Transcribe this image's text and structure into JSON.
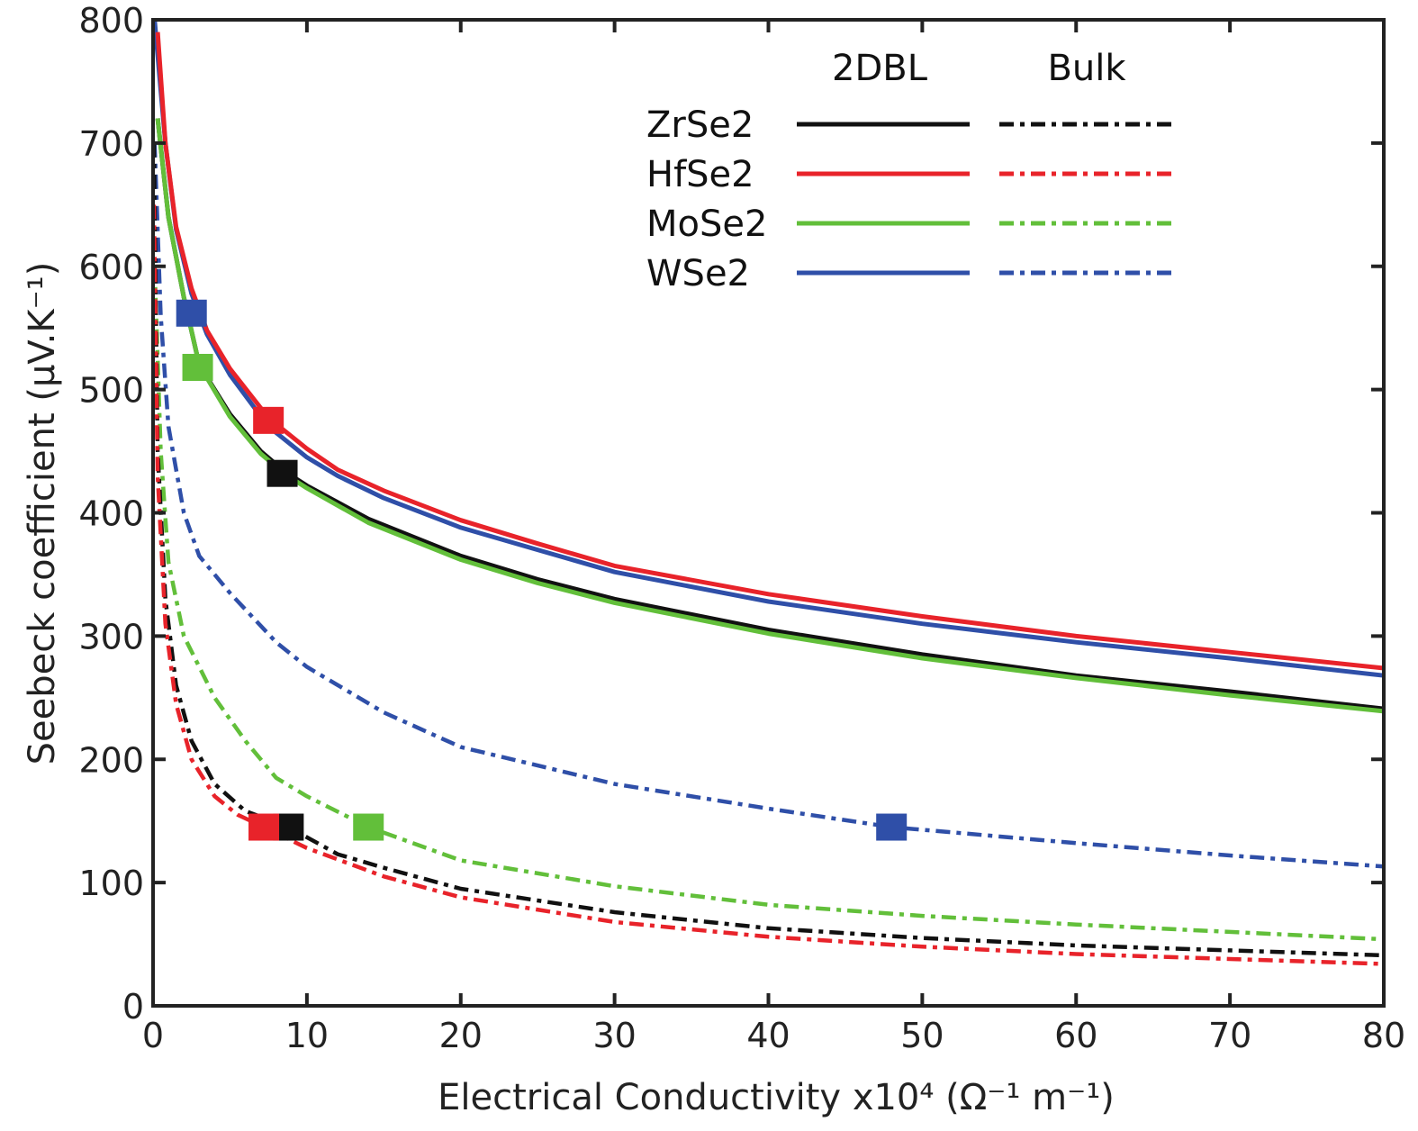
{
  "chart_data": {
    "type": "line",
    "xlabel": "Electrical Conductivity x10⁴  (Ω⁻¹ m⁻¹)",
    "ylabel": "Seebeck coefficient  (μV.K⁻¹)",
    "xlim": [
      0,
      80
    ],
    "ylim": [
      0,
      800
    ],
    "xticks": [
      0,
      10,
      20,
      30,
      40,
      50,
      60,
      70,
      80
    ],
    "yticks": [
      0,
      100,
      200,
      300,
      400,
      500,
      600,
      700,
      800
    ],
    "grid": false,
    "legend": {
      "placement": "top-right",
      "column_headers": [
        "2DBL",
        "Bulk"
      ],
      "rows": [
        "ZrSe2",
        "HfSe2",
        "MoSe2",
        "WSe2"
      ]
    },
    "colors": {
      "ZrSe2": "#111111",
      "HfSe2": "#e8232a",
      "MoSe2": "#62bf3a",
      "WSe2": "#2f4fa8"
    },
    "series": [
      {
        "name": "ZrSe2 2DBL",
        "material": "ZrSe2",
        "style": "solid",
        "marker": [
          8.4,
          432
        ],
        "points": [
          [
            0.3,
            720
          ],
          [
            1,
            640
          ],
          [
            2,
            575
          ],
          [
            3,
            520
          ],
          [
            5,
            480
          ],
          [
            7,
            450
          ],
          [
            8.5,
            434
          ],
          [
            10,
            422
          ],
          [
            14,
            395
          ],
          [
            20,
            365
          ],
          [
            25,
            346
          ],
          [
            30,
            330
          ],
          [
            40,
            305
          ],
          [
            50,
            285
          ],
          [
            60,
            268
          ],
          [
            70,
            255
          ],
          [
            80,
            241
          ]
        ]
      },
      {
        "name": "MoSe2 2DBL",
        "material": "MoSe2",
        "style": "solid",
        "marker": [
          2.9,
          518
        ],
        "points": [
          [
            0.3,
            720
          ],
          [
            1,
            640
          ],
          [
            2,
            575
          ],
          [
            3,
            520
          ],
          [
            5,
            478
          ],
          [
            7,
            448
          ],
          [
            8.5,
            432
          ],
          [
            10,
            420
          ],
          [
            14,
            392
          ],
          [
            20,
            362
          ],
          [
            25,
            343
          ],
          [
            30,
            327
          ],
          [
            40,
            302
          ],
          [
            50,
            282
          ],
          [
            60,
            266
          ],
          [
            70,
            252
          ],
          [
            80,
            239
          ]
        ]
      },
      {
        "name": "WSe2 2DBL",
        "material": "WSe2",
        "style": "solid",
        "marker": [
          2.5,
          562
        ],
        "points": [
          [
            0.1,
            800
          ],
          [
            0.8,
            700
          ],
          [
            1.5,
            630
          ],
          [
            2.5,
            578
          ],
          [
            3.5,
            545
          ],
          [
            5,
            512
          ],
          [
            7.5,
            470
          ],
          [
            10,
            445
          ],
          [
            12,
            430
          ],
          [
            15,
            412
          ],
          [
            20,
            388
          ],
          [
            25,
            370
          ],
          [
            30,
            352
          ],
          [
            40,
            328
          ],
          [
            50,
            310
          ],
          [
            60,
            295
          ],
          [
            70,
            282
          ],
          [
            80,
            268
          ]
        ]
      },
      {
        "name": "HfSe2 2DBL",
        "material": "HfSe2",
        "style": "solid",
        "marker": [
          7.5,
          475
        ],
        "points": [
          [
            0.3,
            790
          ],
          [
            0.8,
            700
          ],
          [
            1.5,
            632
          ],
          [
            2.5,
            582
          ],
          [
            3.5,
            548
          ],
          [
            5,
            517
          ],
          [
            7.5,
            477
          ],
          [
            10,
            452
          ],
          [
            12,
            435
          ],
          [
            15,
            418
          ],
          [
            20,
            394
          ],
          [
            25,
            375
          ],
          [
            30,
            357
          ],
          [
            40,
            334
          ],
          [
            50,
            316
          ],
          [
            60,
            300
          ],
          [
            70,
            287
          ],
          [
            80,
            274
          ]
        ]
      },
      {
        "name": "WSe2 Bulk",
        "material": "WSe2",
        "style": "dashdot",
        "marker": [
          48,
          145
        ],
        "points": [
          [
            0.1,
            700
          ],
          [
            0.5,
            560
          ],
          [
            1,
            470
          ],
          [
            2,
            400
          ],
          [
            3,
            365
          ],
          [
            5,
            335
          ],
          [
            8,
            295
          ],
          [
            10,
            275
          ],
          [
            15,
            238
          ],
          [
            20,
            210
          ],
          [
            30,
            180
          ],
          [
            40,
            160
          ],
          [
            48,
            145
          ],
          [
            60,
            132
          ],
          [
            70,
            122
          ],
          [
            80,
            113
          ]
        ]
      },
      {
        "name": "MoSe2 Bulk",
        "material": "MoSe2",
        "style": "dashdot",
        "marker": [
          14,
          145
        ],
        "points": [
          [
            0.1,
            600
          ],
          [
            0.5,
            450
          ],
          [
            1,
            360
          ],
          [
            2,
            300
          ],
          [
            4,
            250
          ],
          [
            6,
            215
          ],
          [
            8,
            185
          ],
          [
            10,
            170
          ],
          [
            14,
            145
          ],
          [
            20,
            118
          ],
          [
            30,
            97
          ],
          [
            40,
            82
          ],
          [
            50,
            73
          ],
          [
            60,
            66
          ],
          [
            70,
            60
          ],
          [
            80,
            54
          ]
        ]
      },
      {
        "name": "ZrSe2 Bulk",
        "material": "ZrSe2",
        "style": "dashdot",
        "marker": [
          8.8,
          145
        ],
        "points": [
          [
            0.05,
            700
          ],
          [
            0.3,
            450
          ],
          [
            0.8,
            330
          ],
          [
            1.5,
            260
          ],
          [
            2.5,
            215
          ],
          [
            4,
            180
          ],
          [
            6,
            158
          ],
          [
            8.8,
            145
          ],
          [
            12,
            123
          ],
          [
            15,
            112
          ],
          [
            20,
            95
          ],
          [
            30,
            76
          ],
          [
            40,
            63
          ],
          [
            50,
            55
          ],
          [
            60,
            49
          ],
          [
            70,
            45
          ],
          [
            80,
            41
          ]
        ]
      },
      {
        "name": "HfSe2 Bulk",
        "material": "HfSe2",
        "style": "dashdot",
        "marker": [
          7.2,
          145
        ],
        "points": [
          [
            0.05,
            650
          ],
          [
            0.3,
            430
          ],
          [
            0.8,
            310
          ],
          [
            1.5,
            245
          ],
          [
            2.5,
            200
          ],
          [
            4,
            170
          ],
          [
            5.5,
            155
          ],
          [
            7.2,
            145
          ],
          [
            10,
            128
          ],
          [
            15,
            105
          ],
          [
            20,
            88
          ],
          [
            30,
            68
          ],
          [
            40,
            56
          ],
          [
            50,
            48
          ],
          [
            60,
            42
          ],
          [
            70,
            38
          ],
          [
            80,
            34
          ]
        ]
      }
    ]
  }
}
